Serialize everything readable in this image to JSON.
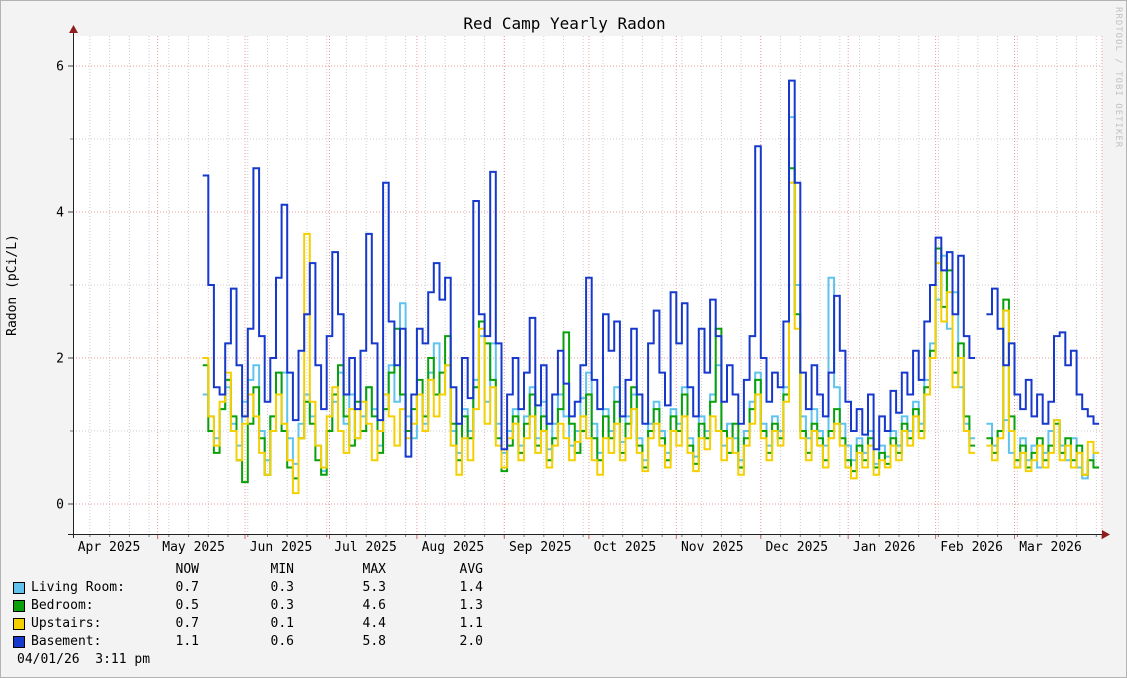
{
  "title": "Red Camp Yearly Radon",
  "watermark": "RRDTOOL / TOBI OETIKER",
  "timestamp": "04/01/26  3:11 pm",
  "y_axis": {
    "label": "Radon (pCi/L)",
    "major_ticks": [
      0,
      2,
      4,
      6
    ],
    "minor_ticks": [
      1,
      3,
      5
    ]
  },
  "x_axis": {
    "months": [
      {
        "label": "Apr 2025",
        "start_day": 0
      },
      {
        "label": "May 2025",
        "start_day": 30
      },
      {
        "label": "Jun 2025",
        "start_day": 61
      },
      {
        "label": "Jul 2025",
        "start_day": 91
      },
      {
        "label": "Aug 2025",
        "start_day": 122
      },
      {
        "label": "Sep 2025",
        "start_day": 153
      },
      {
        "label": "Oct 2025",
        "start_day": 183
      },
      {
        "label": "Nov 2025",
        "start_day": 214
      },
      {
        "label": "Dec 2025",
        "start_day": 244
      },
      {
        "label": "Jan 2026",
        "start_day": 275
      },
      {
        "label": "Feb 2026",
        "start_day": 306
      },
      {
        "label": "Mar 2026",
        "start_day": 334
      }
    ],
    "end_day": 365
  },
  "legend": {
    "columns": [
      "NOW",
      "MIN",
      "MAX",
      "AVG"
    ],
    "rows": [
      {
        "label": "Living Room:",
        "color": "#5fc3ee",
        "now": "0.7",
        "min": "0.3",
        "max": "5.3",
        "avg": "1.4"
      },
      {
        "label": "Bedroom:",
        "color": "#09a009",
        "now": "0.5",
        "min": "0.3",
        "max": "4.6",
        "avg": "1.3"
      },
      {
        "label": "Upstairs:",
        "color": "#f5d000",
        "now": "0.7",
        "min": "0.1",
        "max": "4.4",
        "avg": "1.1"
      },
      {
        "label": "Basement:",
        "color": "#1638cc",
        "now": "1.1",
        "min": "0.6",
        "max": "5.8",
        "avg": "2.0"
      }
    ]
  },
  "colors": {
    "background": "#f3f3f3",
    "plot_background": "#ffffff",
    "grid_minor": "#cccccc",
    "grid_major": "#ef9a9a",
    "axis": "#222222",
    "arrow": "#8f1f1f",
    "watermark": "#c2c2c2"
  },
  "chart_data": {
    "type": "line",
    "title": "Red Camp Yearly Radon",
    "ylabel": "Radon (pCi/L)",
    "ylim": [
      -0.41,
      6.41
    ],
    "x_epoch": "2025-04-01",
    "x_start_day": 46,
    "x_step_days": 2,
    "gap_note": "nulls are a data gap in mid-Feb 2026",
    "series": [
      {
        "name": "Living Room",
        "color": "#5fc3ee",
        "values": [
          1.5,
          1.2,
          0.9,
          1.3,
          1.6,
          1.1,
          0.8,
          1.4,
          1.7,
          1.9,
          1.0,
          0.6,
          1.2,
          1.5,
          1.8,
          0.9,
          0.55,
          1.1,
          1.5,
          1.2,
          0.8,
          0.45,
          1.0,
          1.4,
          1.8,
          1.1,
          1.5,
          0.9,
          1.2,
          1.6,
          1.3,
          0.8,
          1.5,
          1.9,
          1.4,
          2.75,
          1.2,
          0.9,
          1.5,
          1.1,
          1.8,
          2.2,
          1.5,
          1.9,
          1.0,
          0.7,
          1.3,
          1.0,
          1.7,
          2.3,
          1.4,
          2.2,
          1.1,
          0.7,
          1.0,
          1.3,
          0.8,
          1.2,
          1.6,
          0.9,
          1.4,
          0.75,
          1.1,
          1.5,
          1.2,
          0.8,
          1.0,
          1.45,
          1.8,
          1.1,
          0.7,
          1.3,
          1.0,
          1.6,
          0.85,
          1.2,
          1.5,
          0.9,
          0.6,
          1.1,
          1.4,
          1.0,
          0.7,
          1.3,
          1.1,
          1.6,
          0.9,
          0.65,
          1.2,
          1.0,
          1.5,
          1.9,
          0.8,
          1.1,
          0.9,
          0.6,
          1.0,
          1.4,
          1.8,
          1.1,
          0.8,
          1.2,
          1.0,
          1.6,
          5.3,
          3.0,
          1.2,
          0.9,
          1.3,
          1.0,
          0.8,
          3.1,
          1.6,
          1.1,
          0.8,
          0.6,
          0.9,
          0.7,
          1.0,
          0.55,
          0.8,
          0.65,
          1.0,
          0.8,
          1.2,
          1.0,
          1.4,
          1.1,
          1.7,
          2.2,
          2.8,
          3.4,
          2.4,
          2.9,
          1.6,
          1.1,
          0.9,
          null,
          null,
          1.1,
          0.8,
          1.0,
          1.15,
          0.7,
          0.5,
          0.9,
          0.6,
          0.8,
          0.5,
          0.7,
          1.0,
          1.15,
          0.8,
          0.6,
          0.9,
          0.5,
          0.35,
          0.6,
          0.7
        ]
      },
      {
        "name": "Bedroom",
        "color": "#09a009",
        "values": [
          1.9,
          1.0,
          0.7,
          1.3,
          1.7,
          1.2,
          0.6,
          0.3,
          1.1,
          1.6,
          0.9,
          0.4,
          1.2,
          1.8,
          1.0,
          0.5,
          0.35,
          0.9,
          1.4,
          1.1,
          0.6,
          0.4,
          1.0,
          1.5,
          1.9,
          1.2,
          0.8,
          1.4,
          1.0,
          1.6,
          1.2,
          0.7,
          1.3,
          1.8,
          2.4,
          1.5,
          1.0,
          1.3,
          1.7,
          1.2,
          2.0,
          1.5,
          1.8,
          2.3,
          1.1,
          0.6,
          1.2,
          0.9,
          1.6,
          2.5,
          2.2,
          1.7,
          0.9,
          0.45,
          0.8,
          1.2,
          0.7,
          1.1,
          1.5,
          0.8,
          1.2,
          0.6,
          0.9,
          1.3,
          2.35,
          1.1,
          0.7,
          1.0,
          1.5,
          0.9,
          0.6,
          1.2,
          0.9,
          1.4,
          0.7,
          1.1,
          1.6,
          0.8,
          0.5,
          1.0,
          1.3,
          0.9,
          0.6,
          1.2,
          1.0,
          1.5,
          0.8,
          0.55,
          1.1,
          0.9,
          1.4,
          2.4,
          1.0,
          0.7,
          1.1,
          0.5,
          0.9,
          1.3,
          1.7,
          1.0,
          0.7,
          1.1,
          0.9,
          1.5,
          4.6,
          2.6,
          1.0,
          0.7,
          1.1,
          0.9,
          0.6,
          1.0,
          1.3,
          0.9,
          0.6,
          0.45,
          0.8,
          0.6,
          0.9,
          0.5,
          0.7,
          0.55,
          0.9,
          0.7,
          1.1,
          0.9,
          1.3,
          1.0,
          1.6,
          2.1,
          3.5,
          2.7,
          3.2,
          1.8,
          2.2,
          1.2,
          0.8,
          null,
          null,
          0.9,
          0.7,
          1.0,
          2.8,
          1.2,
          0.6,
          0.8,
          0.5,
          0.7,
          0.9,
          0.6,
          0.8,
          1.1,
          0.7,
          0.9,
          0.6,
          0.8,
          0.4,
          0.6,
          0.5
        ]
      },
      {
        "name": "Upstairs",
        "color": "#f5d000",
        "values": [
          2.0,
          1.2,
          0.8,
          1.4,
          1.8,
          1.0,
          0.6,
          1.1,
          1.5,
          1.2,
          0.7,
          0.4,
          1.0,
          1.5,
          1.1,
          0.6,
          0.15,
          0.9,
          3.7,
          1.4,
          0.8,
          0.5,
          1.2,
          1.6,
          1.0,
          0.7,
          1.3,
          0.9,
          1.4,
          1.1,
          0.6,
          1.0,
          1.5,
          1.2,
          0.8,
          1.3,
          0.9,
          1.1,
          1.5,
          1.0,
          1.7,
          1.2,
          1.5,
          1.9,
          0.8,
          0.4,
          0.9,
          0.6,
          1.3,
          2.4,
          1.1,
          1.6,
          0.8,
          0.5,
          0.9,
          1.1,
          0.6,
          0.9,
          1.2,
          0.7,
          1.0,
          0.5,
          0.8,
          1.1,
          0.9,
          0.6,
          0.85,
          1.2,
          0.9,
          0.6,
          0.4,
          0.9,
          0.7,
          1.1,
          0.6,
          0.9,
          1.3,
          0.7,
          0.45,
          0.9,
          1.1,
          0.8,
          0.5,
          1.0,
          0.8,
          1.2,
          0.7,
          0.45,
          0.9,
          0.75,
          1.2,
          1.0,
          0.6,
          0.9,
          0.7,
          0.4,
          0.8,
          1.1,
          1.5,
          0.9,
          0.6,
          1.0,
          0.8,
          1.4,
          4.4,
          2.4,
          0.9,
          0.6,
          1.0,
          0.8,
          0.5,
          0.9,
          1.1,
          0.8,
          0.5,
          0.35,
          0.7,
          0.5,
          0.8,
          0.4,
          0.6,
          0.5,
          0.8,
          0.6,
          1.0,
          0.8,
          1.2,
          0.9,
          1.5,
          2.0,
          3.3,
          2.5,
          2.9,
          1.6,
          2.0,
          1.0,
          0.7,
          null,
          null,
          0.8,
          0.6,
          0.9,
          2.65,
          1.0,
          0.5,
          0.7,
          0.45,
          0.6,
          0.8,
          0.5,
          0.7,
          1.15,
          0.6,
          0.8,
          0.5,
          0.7,
          0.4,
          0.85,
          0.7
        ]
      },
      {
        "name": "Basement",
        "color": "#1638cc",
        "values": [
          4.5,
          3.0,
          1.6,
          1.5,
          2.2,
          2.95,
          1.9,
          1.2,
          2.4,
          4.6,
          2.3,
          1.4,
          2.0,
          3.1,
          4.1,
          1.8,
          1.15,
          2.1,
          2.6,
          3.3,
          1.9,
          1.3,
          2.3,
          3.45,
          2.6,
          1.5,
          2.0,
          1.3,
          2.1,
          3.7,
          2.2,
          1.15,
          4.4,
          2.5,
          1.9,
          2.4,
          0.65,
          1.5,
          2.4,
          2.2,
          2.9,
          3.3,
          2.8,
          3.1,
          1.6,
          1.1,
          2.0,
          1.45,
          4.15,
          2.6,
          2.3,
          4.55,
          2.2,
          0.75,
          1.5,
          2.0,
          1.3,
          1.8,
          2.55,
          1.35,
          1.9,
          1.1,
          1.5,
          2.1,
          1.65,
          1.2,
          1.4,
          1.9,
          3.1,
          1.7,
          1.3,
          2.6,
          2.1,
          2.5,
          1.2,
          1.7,
          2.4,
          1.5,
          1.1,
          2.2,
          2.65,
          1.8,
          1.35,
          2.9,
          2.2,
          2.75,
          1.6,
          1.2,
          2.4,
          1.8,
          2.8,
          2.3,
          1.4,
          1.9,
          1.5,
          1.1,
          1.7,
          2.3,
          4.9,
          2.0,
          1.4,
          1.8,
          1.6,
          2.5,
          5.8,
          4.4,
          1.8,
          1.3,
          1.9,
          1.5,
          1.2,
          1.8,
          2.85,
          2.1,
          1.4,
          1.0,
          1.3,
          0.95,
          1.5,
          0.75,
          1.2,
          1.0,
          1.55,
          1.25,
          1.8,
          1.5,
          2.1,
          1.7,
          2.5,
          3.0,
          3.65,
          3.2,
          3.45,
          2.6,
          3.4,
          2.3,
          2.0,
          null,
          null,
          2.6,
          2.95,
          2.4,
          1.9,
          2.2,
          1.5,
          1.3,
          1.7,
          1.2,
          1.5,
          1.1,
          1.4,
          2.3,
          2.35,
          1.9,
          2.1,
          1.5,
          1.3,
          1.2,
          1.1
        ]
      }
    ]
  }
}
